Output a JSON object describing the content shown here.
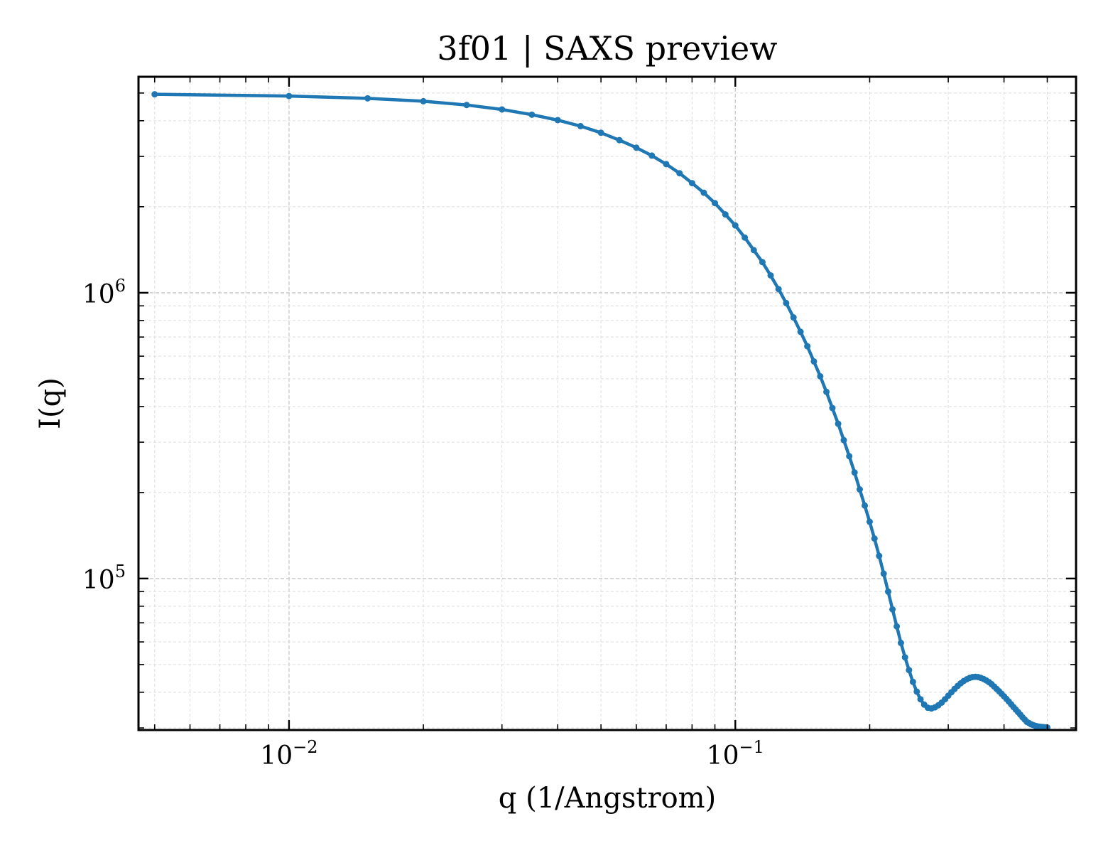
{
  "chart_data": {
    "type": "line",
    "title": "3f01 | SAXS preview",
    "xlabel": "q (1/Angstrom)",
    "ylabel": "I(q)",
    "xscale": "log",
    "yscale": "log",
    "xlim": [
      0.0046,
      0.58
    ],
    "ylim": [
      29500,
      5700000
    ],
    "grid": true,
    "x_ticks": [
      {
        "value": 0.01,
        "base": "10",
        "exp": "−2"
      },
      {
        "value": 0.1,
        "base": "10",
        "exp": "−1"
      }
    ],
    "y_ticks": [
      {
        "value": 100000,
        "base": "10",
        "exp": "5"
      },
      {
        "value": 1000000,
        "base": "10",
        "exp": "6"
      }
    ],
    "colors": {
      "line": "#1f77b4"
    },
    "series": [
      {
        "x": [
          0.005,
          0.01,
          0.015,
          0.02,
          0.025,
          0.03,
          0.035,
          0.04,
          0.045,
          0.05,
          0.055,
          0.06,
          0.065,
          0.07,
          0.075,
          0.08,
          0.085,
          0.09,
          0.095,
          0.1,
          0.105,
          0.11,
          0.115,
          0.12,
          0.125,
          0.13,
          0.135,
          0.14,
          0.145,
          0.15,
          0.155,
          0.16,
          0.165,
          0.17,
          0.175,
          0.18,
          0.185,
          0.19,
          0.195,
          0.2,
          0.205,
          0.21,
          0.215,
          0.22,
          0.225,
          0.23,
          0.235,
          0.24,
          0.245,
          0.25,
          0.255,
          0.26,
          0.265,
          0.27,
          0.275,
          0.28,
          0.285,
          0.29,
          0.295,
          0.3,
          0.305,
          0.31,
          0.315,
          0.32,
          0.325,
          0.33,
          0.335,
          0.34,
          0.345,
          0.35,
          0.355,
          0.36,
          0.365,
          0.37,
          0.375,
          0.38,
          0.385,
          0.39,
          0.395,
          0.4,
          0.405,
          0.41,
          0.415,
          0.42,
          0.425,
          0.43,
          0.435,
          0.44,
          0.445,
          0.45,
          0.455,
          0.46,
          0.465,
          0.47,
          0.475,
          0.48,
          0.485,
          0.49,
          0.495,
          0.5
        ],
        "values": [
          4950000,
          4880000,
          4790000,
          4680000,
          4540000,
          4380000,
          4200000,
          4020000,
          3830000,
          3630000,
          3420000,
          3220000,
          3020000,
          2820000,
          2620000,
          2420000,
          2240000,
          2060000,
          1880000,
          1720000,
          1560000,
          1410000,
          1280000,
          1150000,
          1030000,
          920000,
          820000,
          730000,
          650000,
          575000,
          510000,
          450000,
          395000,
          348000,
          305000,
          268000,
          235000,
          205000,
          180000,
          158000,
          138000,
          120000,
          104000,
          90000,
          78000,
          68000,
          59500,
          53000,
          47800,
          43500,
          40200,
          37800,
          36200,
          35300,
          35100,
          35400,
          36000,
          36800,
          37800,
          38900,
          40000,
          41100,
          42100,
          43000,
          43800,
          44400,
          44900,
          45200,
          45300,
          45200,
          44900,
          44500,
          44000,
          43400,
          42700,
          41900,
          41100,
          40300,
          39500,
          38700,
          37900,
          37100,
          36300,
          35500,
          34800,
          34100,
          33400,
          32700,
          32100,
          31500,
          31200,
          30900,
          30700,
          30500,
          30400,
          30300,
          30250,
          30200,
          30150,
          30100
        ]
      }
    ]
  }
}
